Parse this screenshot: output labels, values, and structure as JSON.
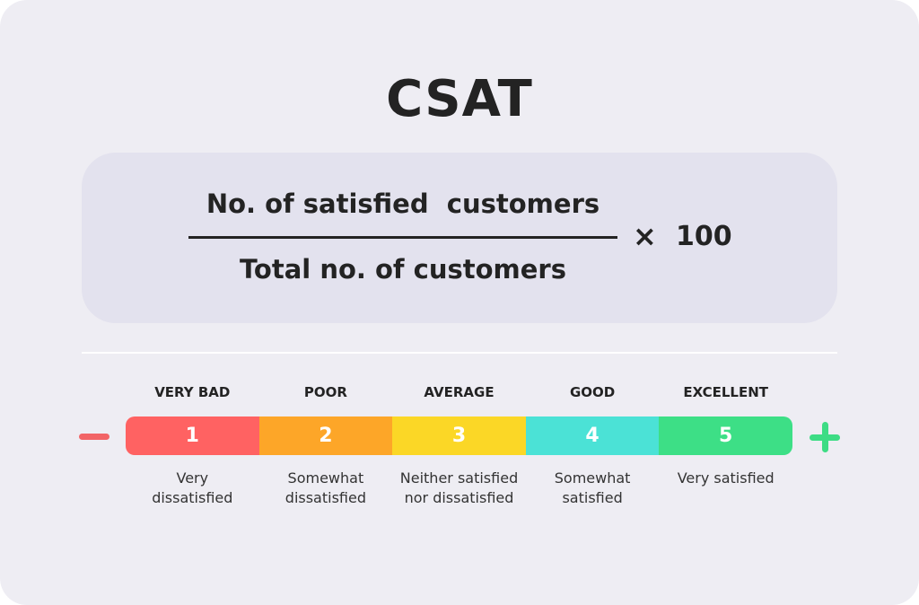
{
  "title": "CSAT",
  "formula": {
    "numerator": "No. of satisfied  customers",
    "denominator": "Total no. of customers",
    "operator": "×",
    "multiplier": "100"
  },
  "scale": {
    "min_icon": "minus-icon",
    "max_icon": "plus-icon",
    "levels": [
      {
        "label": "VERY BAD",
        "value": "1",
        "desc1": "Very",
        "desc2": "dissatisfied",
        "color": "#ff6262"
      },
      {
        "label": "POOR",
        "value": "2",
        "desc1": "Somewhat",
        "desc2": "dissatisfied",
        "color": "#fda628"
      },
      {
        "label": "AVERAGE",
        "value": "3",
        "desc1": "Neither satisfied",
        "desc2": "nor dissatisfied",
        "color": "#fbd726"
      },
      {
        "label": "GOOD",
        "value": "4",
        "desc1": "Somewhat",
        "desc2": "satisfied",
        "color": "#4be2d6"
      },
      {
        "label": "EXCELLENT",
        "value": "5",
        "desc1": "Very satisfied",
        "desc2": "",
        "color": "#3ddf86"
      }
    ]
  }
}
